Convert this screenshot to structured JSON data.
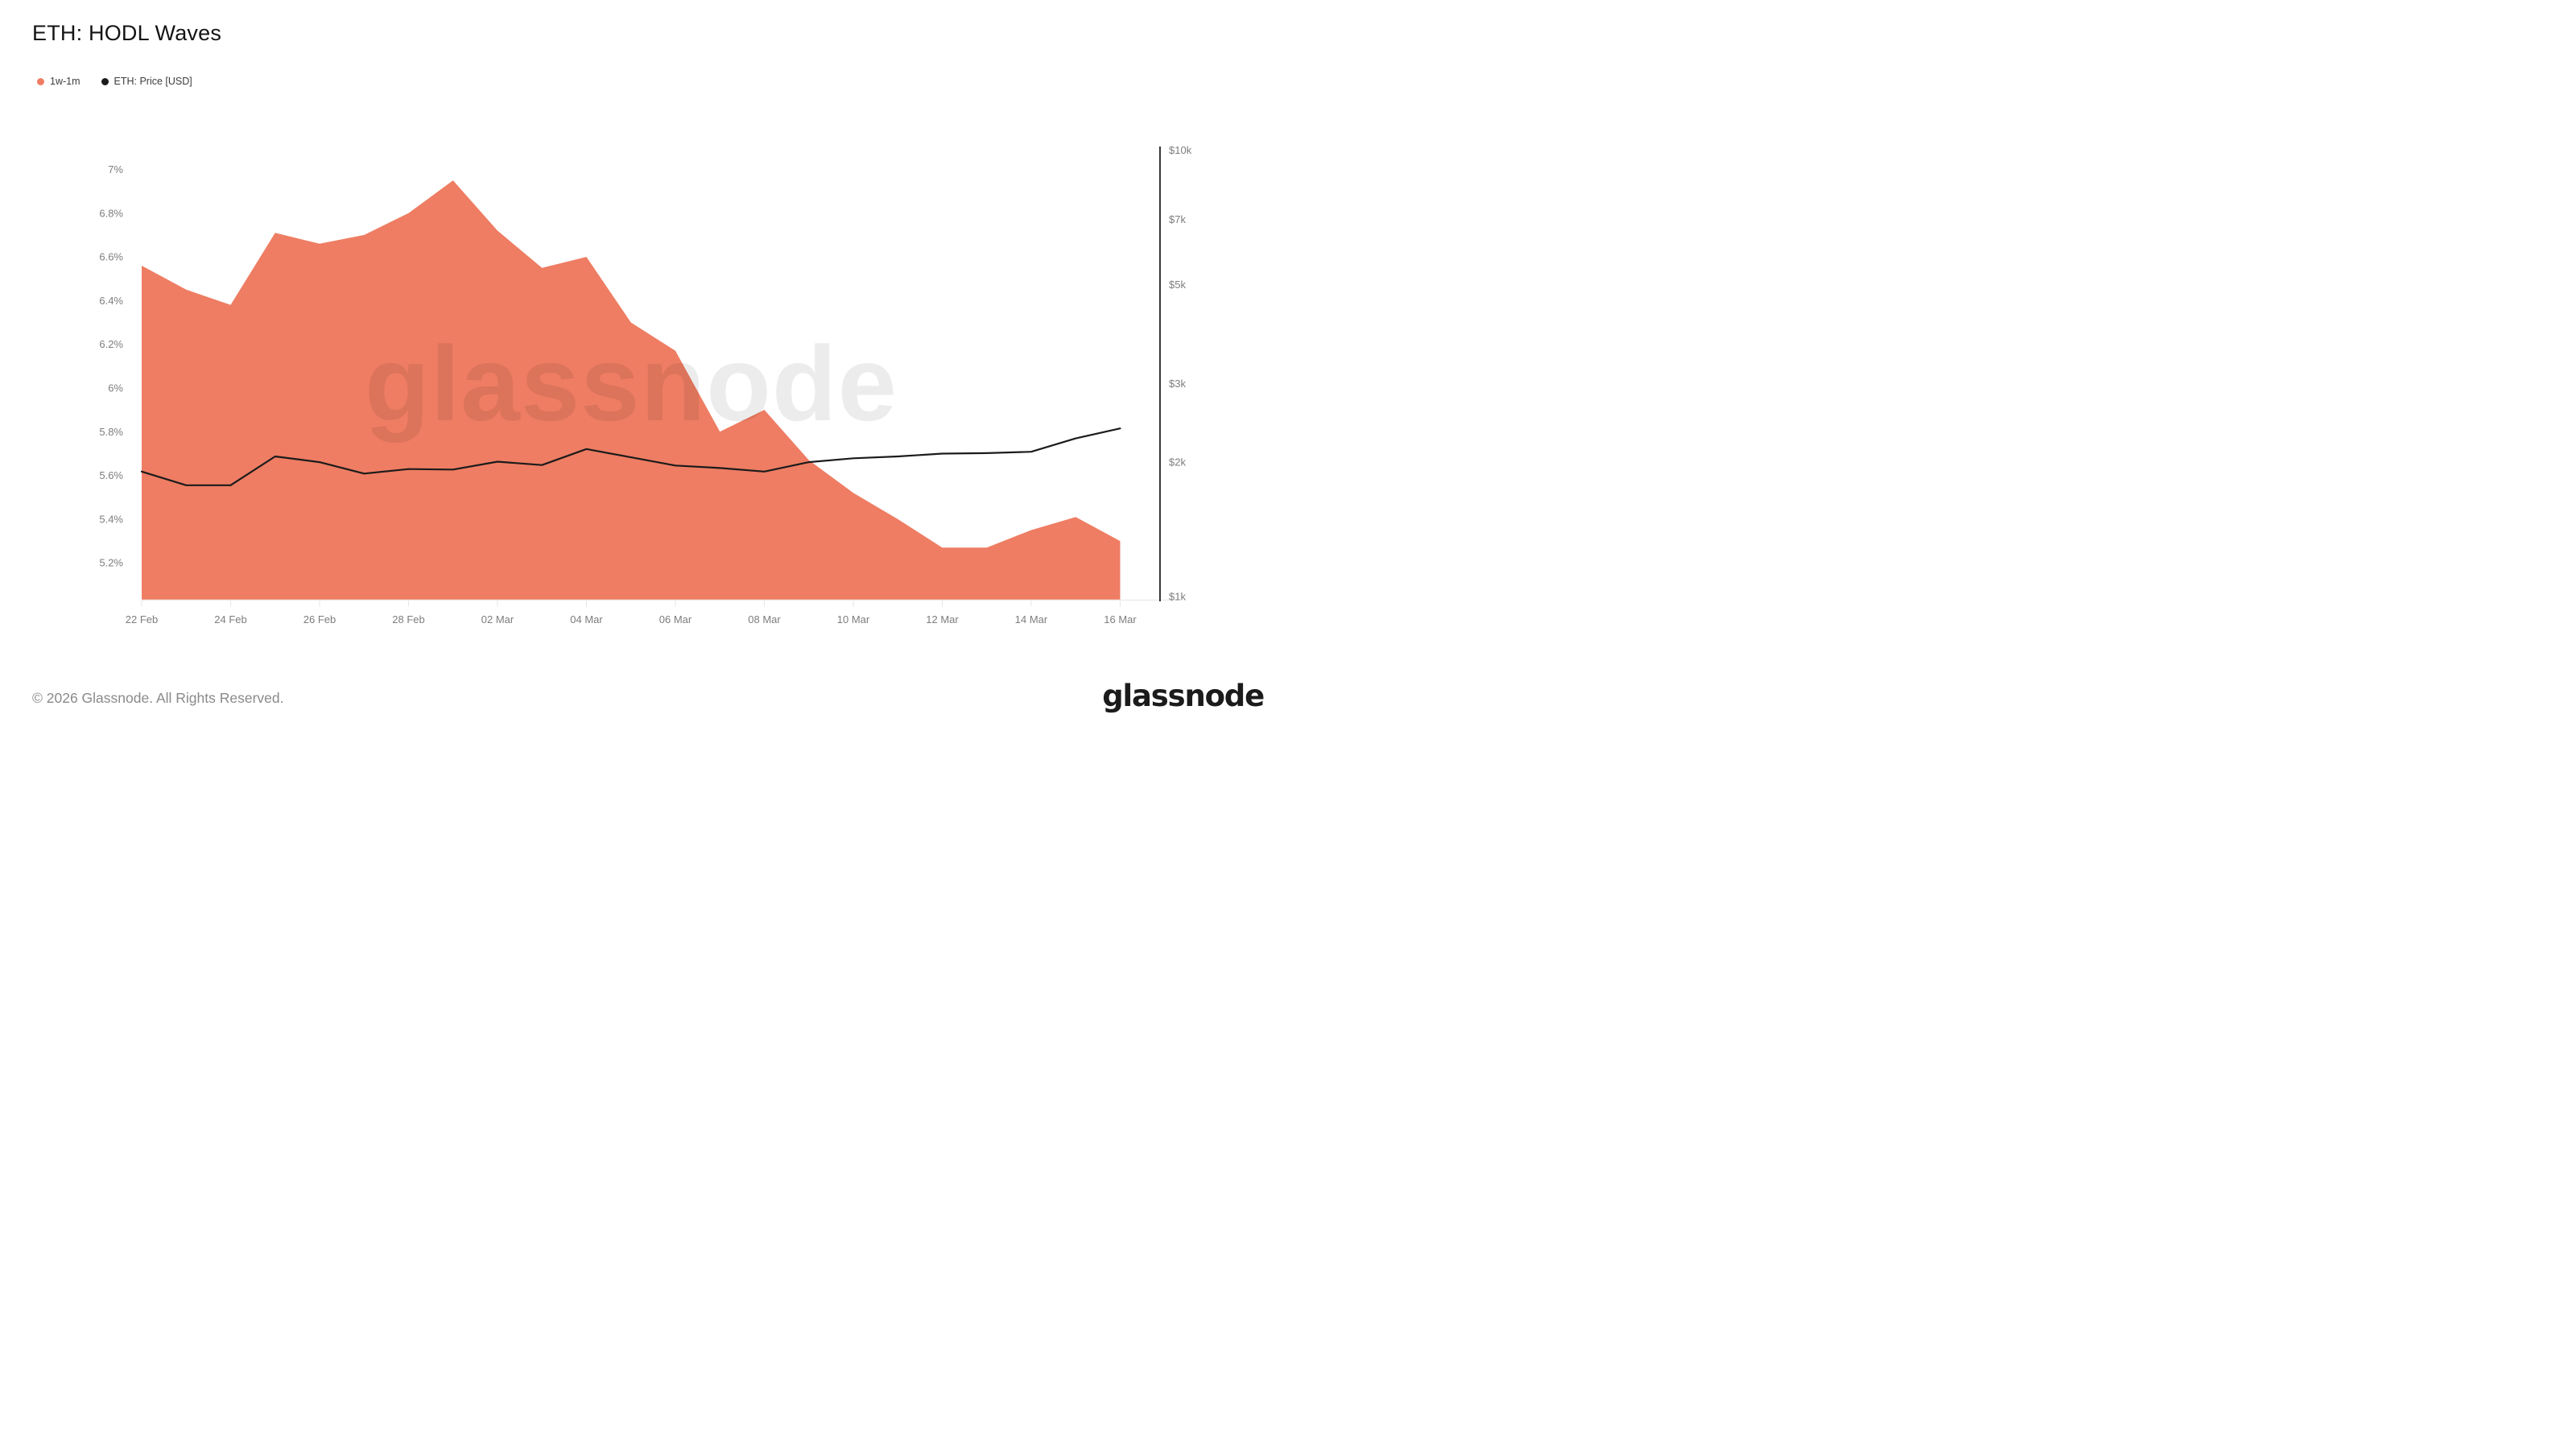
{
  "header": {
    "title": "ETH: HODL Waves"
  },
  "legend": {
    "items": [
      {
        "label": "1w-1m",
        "color": "#EE7D63"
      },
      {
        "label": "ETH: Price [USD]",
        "color": "#1b1b1b"
      }
    ]
  },
  "watermark": {
    "text": "glassnode"
  },
  "footer": {
    "copyright": "© 2026 Glassnode. All Rights Reserved.",
    "logo_text": "glassnode"
  },
  "chart_data": {
    "type": "area",
    "title": "ETH: HODL Waves",
    "categories": [
      "22 Feb",
      "23 Feb",
      "24 Feb",
      "25 Feb",
      "26 Feb",
      "27 Feb",
      "28 Feb",
      "01 Mar",
      "02 Mar",
      "03 Mar",
      "04 Mar",
      "05 Mar",
      "06 Mar",
      "07 Mar",
      "08 Mar",
      "09 Mar",
      "10 Mar",
      "11 Mar",
      "12 Mar",
      "13 Mar",
      "14 Mar",
      "15 Mar",
      "16 Mar"
    ],
    "x_tick_labels": [
      "22 Feb",
      "24 Feb",
      "26 Feb",
      "28 Feb",
      "02 Mar",
      "04 Mar",
      "06 Mar",
      "08 Mar",
      "10 Mar",
      "12 Mar",
      "14 Mar",
      "16 Mar"
    ],
    "x_ticks_every": 2,
    "series": [
      {
        "name": "1w-1m",
        "type": "area",
        "axis": "left",
        "unit": "%",
        "color": "#EE7D63",
        "values": [
          6.56,
          6.45,
          6.38,
          6.71,
          6.66,
          6.7,
          6.8,
          6.95,
          6.72,
          6.55,
          6.6,
          6.3,
          6.17,
          5.8,
          5.9,
          5.67,
          5.52,
          5.4,
          5.27,
          5.27,
          5.35,
          5.41,
          5.3
        ]
      },
      {
        "name": "ETH: Price [USD]",
        "type": "line",
        "axis": "right",
        "unit": "USD",
        "color": "#1b1b1b",
        "values": [
          1905,
          1775,
          1775,
          2060,
          2000,
          1885,
          1930,
          1925,
          2005,
          1970,
          2140,
          2050,
          1965,
          1940,
          1905,
          2000,
          2040,
          2060,
          2090,
          2095,
          2110,
          2260,
          2380
        ]
      }
    ],
    "left_axis": {
      "unit": "%",
      "ticks": [
        7,
        6.8,
        6.6,
        6.4,
        6.2,
        6,
        5.8,
        5.6,
        5.4,
        5.2
      ],
      "tick_labels": [
        "7%",
        "6.8%",
        "6.6%",
        "6.4%",
        "6.2%",
        "6%",
        "5.8%",
        "5.6%",
        "5.4%",
        "5.2%"
      ],
      "range": [
        5.03,
        7.09
      ],
      "gridlines": false
    },
    "right_axis": {
      "unit": "USD",
      "scale": "log",
      "ticks": [
        10000,
        7000,
        5000,
        3000,
        2000,
        1000
      ],
      "tick_labels": [
        "$10k",
        "$7k",
        "$5k",
        "$3k",
        "$2k",
        "$1k"
      ],
      "range": [
        1000,
        10000
      ]
    },
    "colors": {
      "area": "#EE7D63",
      "price_line": "#1b1b1b",
      "axis_text": "#7d7d7d",
      "axis_line": "#151515",
      "baseline": "#ededed",
      "tick_stub": "#e6e6e6",
      "watermark": "rgba(0,0,0,0.075)"
    },
    "legend_position": "top-left"
  }
}
